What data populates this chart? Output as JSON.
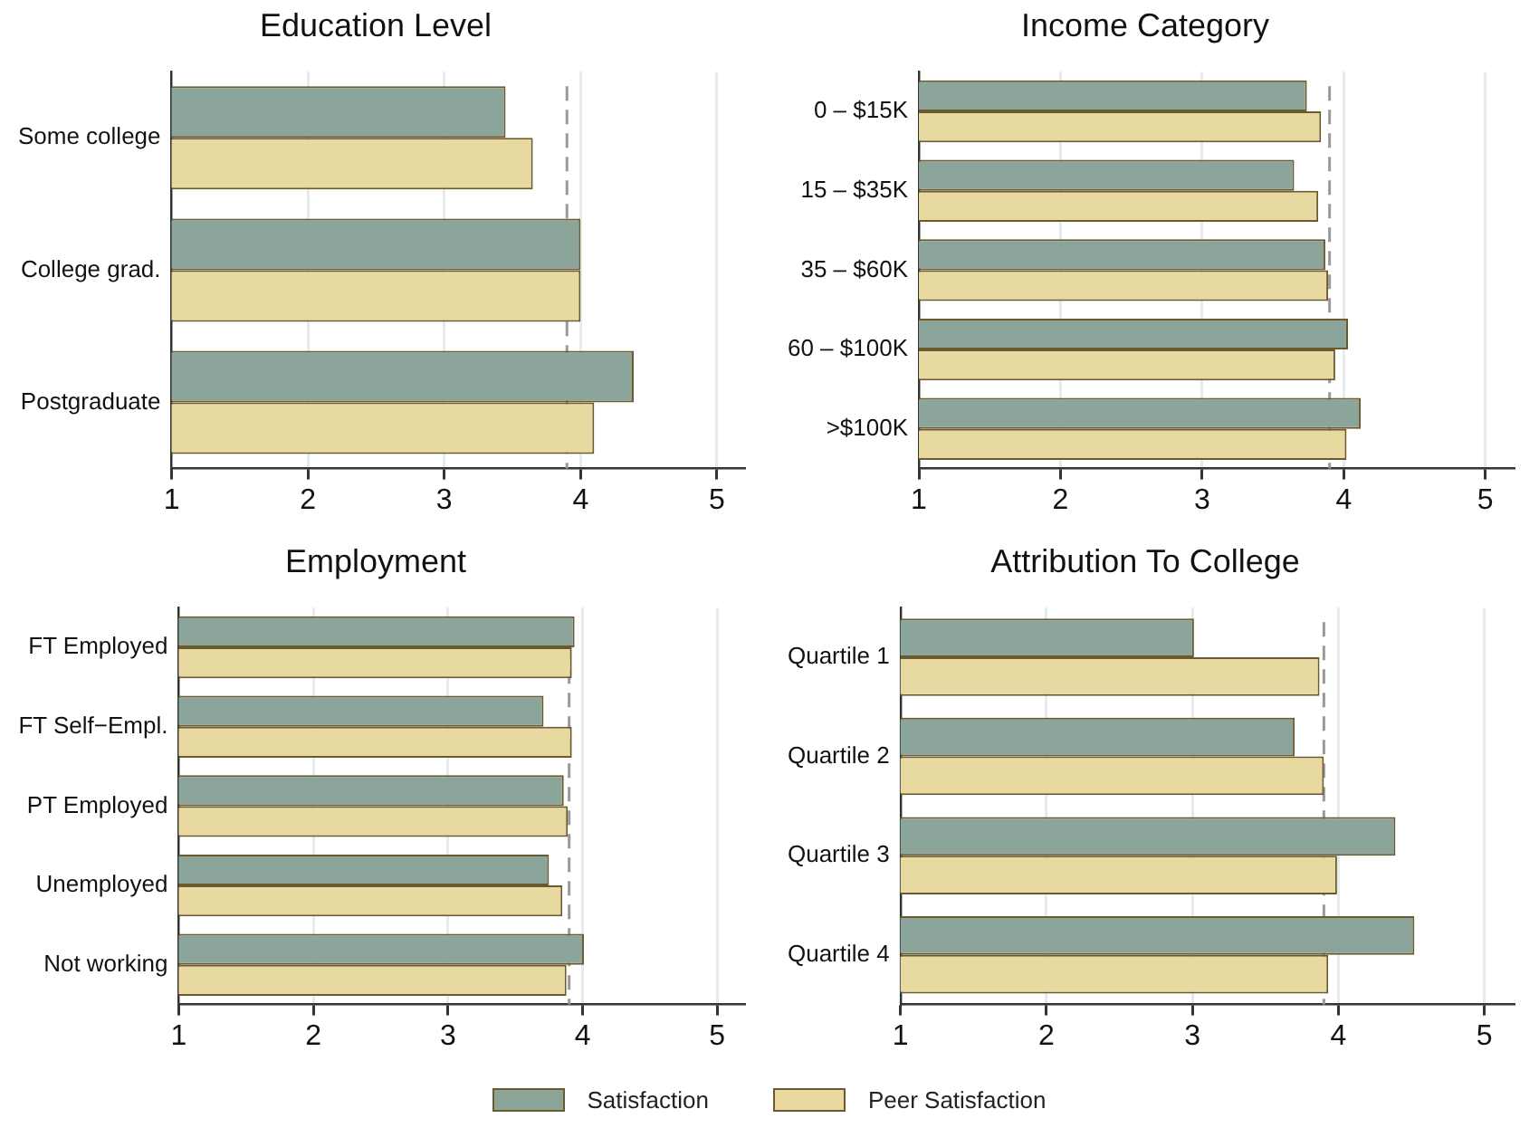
{
  "chart_data": [
    {
      "type": "bar",
      "orientation": "horizontal",
      "title": "Education Level",
      "categories": [
        "Some college",
        "College grad.",
        "Postgraduate"
      ],
      "series": [
        {
          "name": "Satisfaction",
          "color": "#8ba59a",
          "values": [
            3.45,
            4.0,
            4.39
          ]
        },
        {
          "name": "Peer Satisfaction",
          "color": "#e8d9a0",
          "values": [
            3.65,
            4.0,
            4.1
          ]
        }
      ],
      "xlim": [
        1,
        5.2
      ],
      "xticks": [
        1,
        2,
        3,
        4,
        5
      ],
      "grid": "x",
      "legend": "bottom",
      "ref_lines": [
        {
          "axis": "x",
          "value": 3.9,
          "color": "#999999",
          "line_style": "dashed"
        }
      ]
    },
    {
      "type": "bar",
      "orientation": "horizontal",
      "title": "Income Category",
      "categories": [
        "0 – $15K",
        "15 – $35K",
        "35 – $60K",
        "60 – $100K",
        ">$100K"
      ],
      "series": [
        {
          "color": "#8ba59a",
          "values": [
            3.74,
            3.65,
            3.87,
            4.03,
            4.12
          ]
        },
        {
          "color": "#e8d9a0",
          "values": [
            3.84,
            3.82,
            3.89,
            3.94,
            4.02
          ]
        }
      ],
      "xlim": [
        1,
        5.2
      ],
      "xticks": [
        1,
        2,
        3,
        4,
        5
      ],
      "grid": "x",
      "ref_lines": [
        {
          "axis": "x",
          "value": 3.9,
          "color": "#999999",
          "line_style": "dashed"
        }
      ]
    },
    {
      "type": "bar",
      "orientation": "horizontal",
      "title": "Employment",
      "categories": [
        "FT Employed",
        "FT Self−Empl.",
        "PT Employed",
        "Unemployed",
        "Not working"
      ],
      "series": [
        {
          "color": "#8ba59a",
          "values": [
            3.94,
            3.71,
            3.86,
            3.75,
            4.01
          ]
        },
        {
          "color": "#e8d9a0",
          "values": [
            3.92,
            3.92,
            3.89,
            3.85,
            3.88
          ]
        }
      ],
      "xlim": [
        1,
        5.2
      ],
      "xticks": [
        1,
        2,
        3,
        4,
        5
      ],
      "grid": "x",
      "ref_lines": [
        {
          "axis": "x",
          "value": 3.9,
          "color": "#999999",
          "line_style": "dashed"
        }
      ]
    },
    {
      "type": "bar",
      "orientation": "horizontal",
      "title": "Attribution To College",
      "categories": [
        "Quartile 1",
        "Quartile 2",
        "Quartile 3",
        "Quartile 4"
      ],
      "series": [
        {
          "color": "#8ba59a",
          "values": [
            3.01,
            3.7,
            4.39,
            4.52
          ]
        },
        {
          "color": "#e8d9a0",
          "values": [
            3.87,
            3.9,
            3.99,
            3.93
          ]
        }
      ],
      "xlim": [
        1,
        5.2
      ],
      "xticks": [
        1,
        2,
        3,
        4,
        5
      ],
      "grid": "x",
      "ref_lines": [
        {
          "axis": "x",
          "value": 3.9,
          "color": "#999999",
          "line_style": "dashed"
        }
      ]
    }
  ]
}
